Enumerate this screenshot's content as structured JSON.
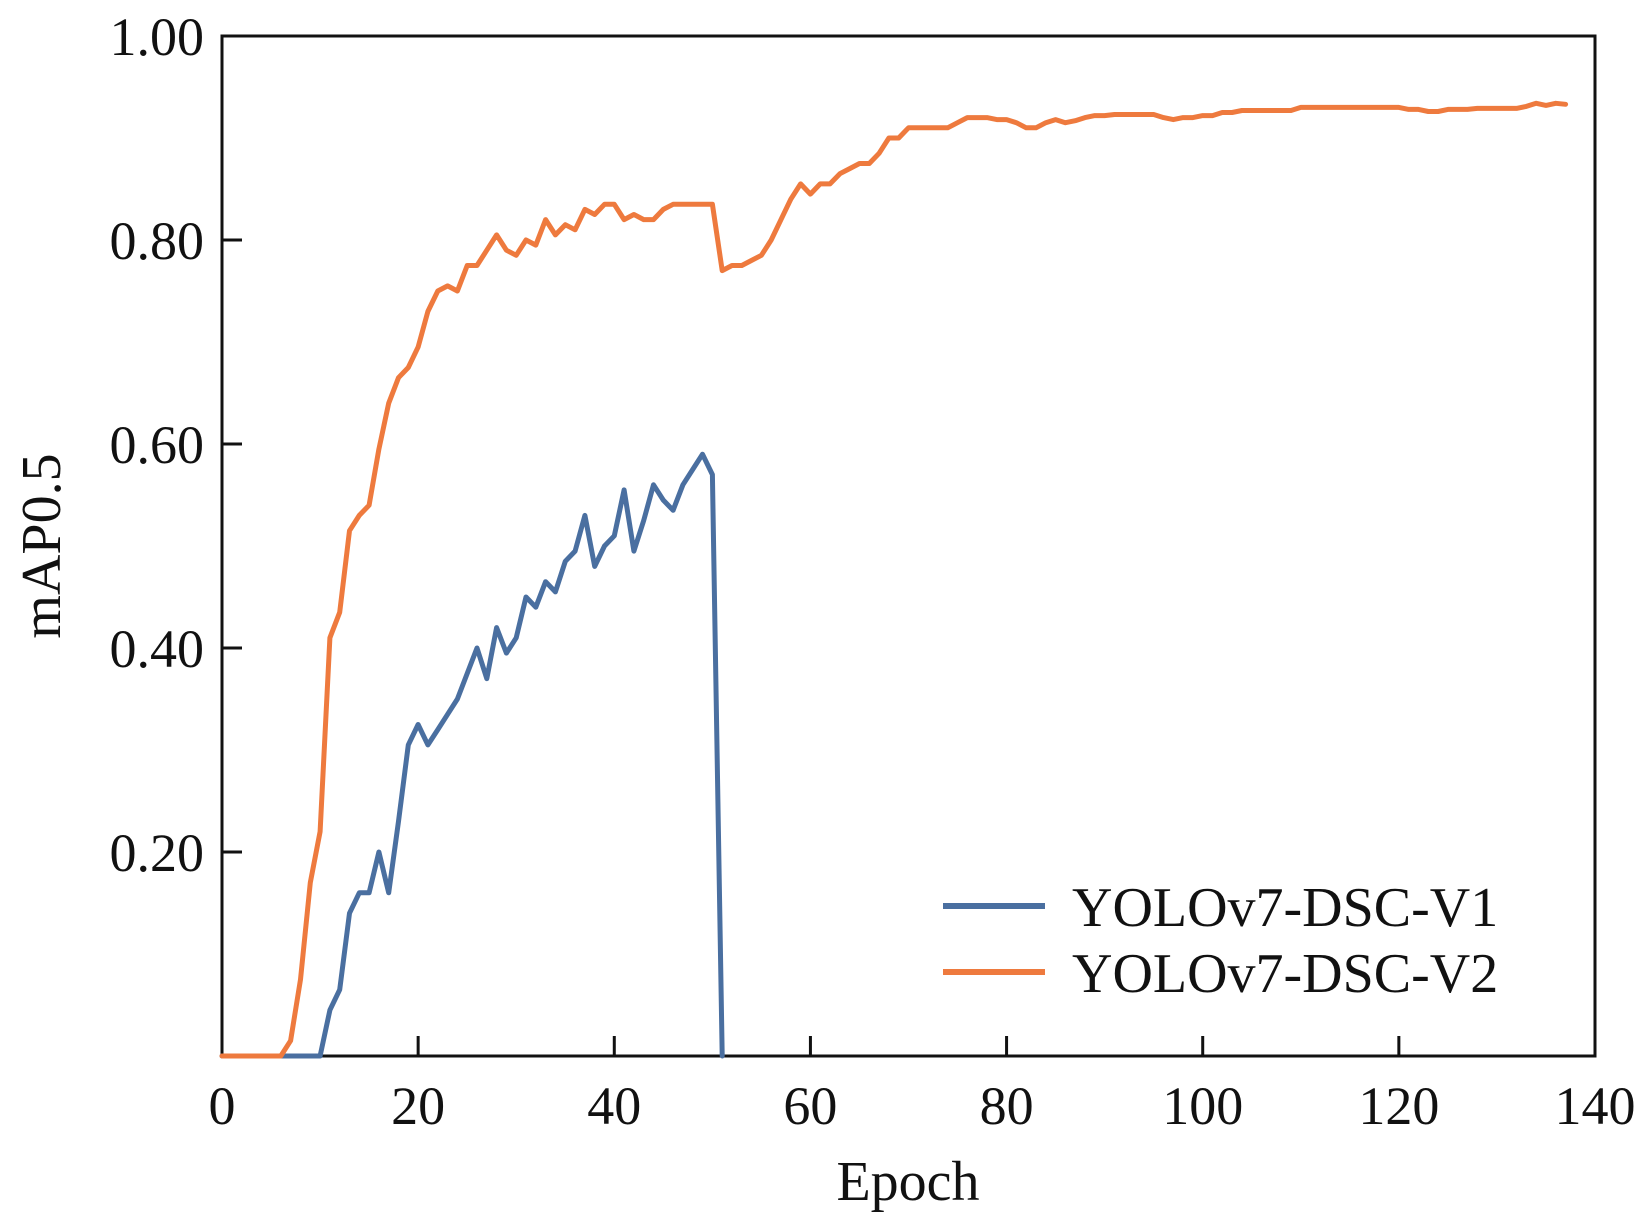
{
  "chart_data": {
    "type": "line",
    "title": "",
    "xlabel": "Epoch",
    "ylabel": "mAP0.5",
    "xlim": [
      0,
      140
    ],
    "ylim": [
      0,
      1.0
    ],
    "x_ticks": [
      0,
      20,
      40,
      60,
      80,
      100,
      120,
      140
    ],
    "x_tick_labels": [
      "0",
      "20",
      "40",
      "60",
      "80",
      "100",
      "120",
      "140"
    ],
    "y_ticks": [
      0.2,
      0.4,
      0.6,
      0.8,
      1.0
    ],
    "y_tick_labels": [
      "0.20",
      "0.40",
      "0.60",
      "0.80",
      "1.00"
    ],
    "grid": false,
    "legend_position": "bottom-right",
    "series": [
      {
        "name": "YOLOv7-DSC-V1",
        "color": "#4a6fa0",
        "x": [
          0,
          1,
          2,
          3,
          4,
          5,
          6,
          7,
          8,
          9,
          10,
          11,
          12,
          13,
          14,
          15,
          16,
          17,
          18,
          19,
          20,
          21,
          22,
          23,
          24,
          25,
          26,
          27,
          28,
          29,
          30,
          31,
          32,
          33,
          34,
          35,
          36,
          37,
          38,
          39,
          40,
          41,
          42,
          43,
          44,
          45,
          46,
          47,
          48,
          49,
          50,
          51
        ],
        "y": [
          0,
          0,
          0,
          0,
          0,
          0,
          0,
          0,
          0,
          0,
          0,
          0.045,
          0.065,
          0.14,
          0.16,
          0.16,
          0.2,
          0.16,
          0.23,
          0.305,
          0.325,
          0.305,
          0.32,
          0.335,
          0.35,
          0.375,
          0.4,
          0.37,
          0.42,
          0.395,
          0.41,
          0.45,
          0.44,
          0.465,
          0.455,
          0.485,
          0.495,
          0.53,
          0.48,
          0.5,
          0.51,
          0.555,
          0.495,
          0.525,
          0.56,
          0.545,
          0.535,
          0.56,
          0.575,
          0.59,
          0.57,
          0
        ]
      },
      {
        "name": "YOLOv7-DSC-V2",
        "color": "#ee7a3e",
        "x": [
          0,
          1,
          2,
          3,
          4,
          5,
          6,
          7,
          8,
          9,
          10,
          11,
          12,
          13,
          14,
          15,
          16,
          17,
          18,
          19,
          20,
          21,
          22,
          23,
          24,
          25,
          26,
          27,
          28,
          29,
          30,
          31,
          32,
          33,
          34,
          35,
          36,
          37,
          38,
          39,
          40,
          41,
          42,
          43,
          44,
          45,
          46,
          47,
          48,
          49,
          50,
          51,
          52,
          53,
          54,
          55,
          56,
          57,
          58,
          59,
          60,
          61,
          62,
          63,
          64,
          65,
          66,
          67,
          68,
          69,
          70,
          71,
          72,
          73,
          74,
          75,
          76,
          77,
          78,
          79,
          80,
          81,
          82,
          83,
          84,
          85,
          86,
          87,
          88,
          89,
          90,
          91,
          92,
          93,
          94,
          95,
          96,
          97,
          98,
          99,
          100,
          101,
          102,
          103,
          104,
          105,
          106,
          107,
          108,
          109,
          110,
          111,
          112,
          113,
          114,
          115,
          116,
          117,
          118,
          119,
          120,
          121,
          122,
          123,
          124,
          125,
          126,
          127,
          128,
          129,
          130,
          131,
          132,
          133,
          134,
          135,
          136,
          137
        ],
        "y": [
          0,
          0,
          0,
          0,
          0,
          0,
          0,
          0.015,
          0.075,
          0.17,
          0.22,
          0.41,
          0.435,
          0.515,
          0.53,
          0.54,
          0.595,
          0.64,
          0.665,
          0.675,
          0.695,
          0.73,
          0.75,
          0.755,
          0.75,
          0.775,
          0.775,
          0.79,
          0.805,
          0.79,
          0.785,
          0.8,
          0.795,
          0.82,
          0.805,
          0.815,
          0.81,
          0.83,
          0.825,
          0.835,
          0.835,
          0.82,
          0.825,
          0.82,
          0.82,
          0.83,
          0.835,
          0.835,
          0.835,
          0.835,
          0.835,
          0.77,
          0.775,
          0.775,
          0.78,
          0.785,
          0.8,
          0.82,
          0.84,
          0.855,
          0.845,
          0.855,
          0.855,
          0.865,
          0.87,
          0.875,
          0.875,
          0.885,
          0.9,
          0.9,
          0.91,
          0.91,
          0.91,
          0.91,
          0.91,
          0.915,
          0.92,
          0.92,
          0.92,
          0.918,
          0.918,
          0.915,
          0.91,
          0.91,
          0.915,
          0.918,
          0.915,
          0.917,
          0.92,
          0.922,
          0.922,
          0.923,
          0.923,
          0.923,
          0.923,
          0.923,
          0.92,
          0.918,
          0.92,
          0.92,
          0.922,
          0.922,
          0.925,
          0.925,
          0.927,
          0.927,
          0.927,
          0.927,
          0.927,
          0.927,
          0.93,
          0.93,
          0.93,
          0.93,
          0.93,
          0.93,
          0.93,
          0.93,
          0.93,
          0.93,
          0.93,
          0.928,
          0.928,
          0.926,
          0.926,
          0.928,
          0.928,
          0.928,
          0.929,
          0.929,
          0.929,
          0.929,
          0.929,
          0.931,
          0.934,
          0.932,
          0.934,
          0.933
        ]
      }
    ]
  }
}
